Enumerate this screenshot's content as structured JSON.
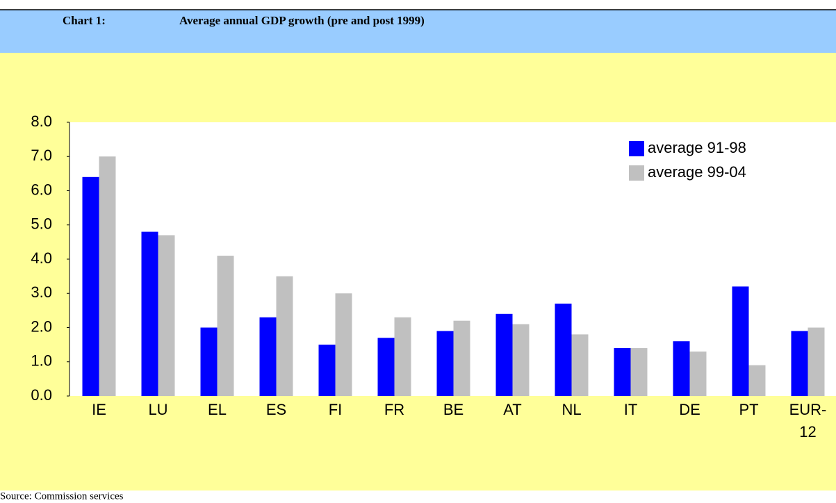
{
  "chart_data": {
    "type": "bar",
    "chart_number": "Chart 1:",
    "title": "Average annual GDP growth (pre and post 1999)",
    "source": "Source: Commission services",
    "categories": [
      "IE",
      "LU",
      "EL",
      "ES",
      "FI",
      "FR",
      "BE",
      "AT",
      "NL",
      "IT",
      "DE",
      "PT",
      "EUR-12"
    ],
    "series": [
      {
        "name": "average 91-98",
        "color": "#0000ff",
        "values": [
          6.4,
          4.8,
          2.0,
          2.3,
          1.5,
          1.7,
          1.9,
          2.4,
          2.7,
          1.4,
          1.6,
          3.2,
          1.9
        ]
      },
      {
        "name": "average 99-04",
        "color": "#c0c0c0",
        "values": [
          7.0,
          4.7,
          4.1,
          3.5,
          3.0,
          2.3,
          2.2,
          2.1,
          1.8,
          1.4,
          1.3,
          0.9,
          2.0
        ]
      }
    ],
    "ylim": [
      0,
      8
    ],
    "yticks": [
      {
        "value": 0,
        "label": "0.0"
      },
      {
        "value": 1,
        "label": "1.0"
      },
      {
        "value": 2,
        "label": "2.0"
      },
      {
        "value": 3,
        "label": "3.0"
      },
      {
        "value": 4,
        "label": "4.0"
      },
      {
        "value": 5,
        "label": "5.0"
      },
      {
        "value": 6,
        "label": "6.0"
      },
      {
        "value": 7,
        "label": "7.0"
      },
      {
        "value": 8,
        "label": "8.0"
      }
    ],
    "grid": false,
    "legend": "top-right"
  }
}
